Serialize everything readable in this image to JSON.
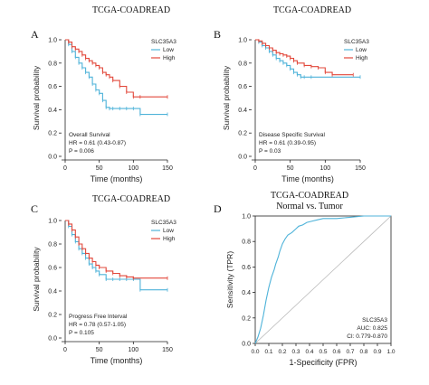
{
  "chart_data": [
    {
      "panel": "A",
      "type": "line",
      "title": "TCGA-COADREAD",
      "xlabel": "Time (months)",
      "ylabel": "Survival probability",
      "xlim": [
        0,
        150
      ],
      "ylim": [
        0,
        1.0
      ],
      "xticks": [
        0,
        50,
        100,
        150
      ],
      "yticks": [
        0,
        0.2,
        0.4,
        0.6,
        0.8,
        1.0
      ],
      "legend_title": "SLC35A3",
      "legend_position": "top-right",
      "annotation": [
        "Overall Survival",
        "HR = 0.61 (0.43-0.87)",
        "P = 0.006"
      ],
      "series": [
        {
          "name": "Low",
          "color": "#4fb3d9",
          "x": [
            0,
            5,
            10,
            15,
            20,
            25,
            30,
            35,
            40,
            45,
            50,
            55,
            60,
            65,
            70,
            80,
            90,
            100,
            110,
            150
          ],
          "y": [
            1.0,
            0.96,
            0.9,
            0.85,
            0.8,
            0.76,
            0.72,
            0.68,
            0.62,
            0.57,
            0.54,
            0.48,
            0.42,
            0.41,
            0.41,
            0.41,
            0.41,
            0.41,
            0.36,
            0.36
          ]
        },
        {
          "name": "High",
          "color": "#e2483b",
          "x": [
            0,
            5,
            10,
            15,
            20,
            25,
            30,
            35,
            40,
            45,
            50,
            55,
            60,
            65,
            70,
            80,
            90,
            100,
            110,
            150
          ],
          "y": [
            1.0,
            0.98,
            0.94,
            0.92,
            0.9,
            0.87,
            0.84,
            0.82,
            0.8,
            0.78,
            0.76,
            0.72,
            0.7,
            0.68,
            0.65,
            0.6,
            0.55,
            0.51,
            0.51,
            0.51
          ]
        }
      ]
    },
    {
      "panel": "B",
      "type": "line",
      "title": "TCGA-COADREAD",
      "xlabel": "Time (months)",
      "ylabel": "Survival probability",
      "xlim": [
        0,
        150
      ],
      "ylim": [
        0,
        1.0
      ],
      "xticks": [
        0,
        50,
        100,
        150
      ],
      "yticks": [
        0,
        0.2,
        0.4,
        0.6,
        0.8,
        1.0
      ],
      "legend_title": "SLC35A3",
      "legend_position": "top-right",
      "annotation": [
        "Disease Specific Survival",
        "HR = 0.61 (0.39-0.95)",
        "P = 0.03"
      ],
      "series": [
        {
          "name": "Low",
          "color": "#4fb3d9",
          "x": [
            0,
            5,
            10,
            15,
            20,
            25,
            30,
            35,
            40,
            45,
            50,
            55,
            60,
            65,
            70,
            80,
            150
          ],
          "y": [
            1.0,
            0.98,
            0.95,
            0.93,
            0.9,
            0.87,
            0.84,
            0.82,
            0.8,
            0.78,
            0.75,
            0.72,
            0.7,
            0.68,
            0.68,
            0.68,
            0.68
          ]
        },
        {
          "name": "High",
          "color": "#e2483b",
          "x": [
            0,
            5,
            10,
            15,
            20,
            25,
            30,
            35,
            40,
            45,
            50,
            55,
            60,
            70,
            80,
            90,
            100,
            110,
            140
          ],
          "y": [
            1.0,
            0.99,
            0.97,
            0.95,
            0.93,
            0.91,
            0.89,
            0.88,
            0.87,
            0.86,
            0.84,
            0.82,
            0.8,
            0.78,
            0.77,
            0.76,
            0.72,
            0.7,
            0.7
          ]
        }
      ]
    },
    {
      "panel": "C",
      "type": "line",
      "title": "TCGA-COADREAD",
      "xlabel": "Time (months)",
      "ylabel": "Survival probability",
      "xlim": [
        0,
        150
      ],
      "ylim": [
        0,
        1.0
      ],
      "xticks": [
        0,
        50,
        100,
        150
      ],
      "yticks": [
        0,
        0.2,
        0.4,
        0.6,
        0.8,
        1.0
      ],
      "legend_title": "SLC35A3",
      "legend_position": "top-right",
      "annotation": [
        "Progress Free Interval",
        "HR = 0.78 (0.57-1.05)",
        "P = 0.105"
      ],
      "series": [
        {
          "name": "Low",
          "color": "#4fb3d9",
          "x": [
            0,
            5,
            10,
            15,
            20,
            25,
            30,
            35,
            40,
            45,
            50,
            60,
            70,
            80,
            90,
            100,
            110,
            150
          ],
          "y": [
            1.0,
            0.95,
            0.88,
            0.82,
            0.76,
            0.72,
            0.68,
            0.63,
            0.6,
            0.57,
            0.54,
            0.5,
            0.5,
            0.5,
            0.5,
            0.5,
            0.41,
            0.41
          ]
        },
        {
          "name": "High",
          "color": "#e2483b",
          "x": [
            0,
            5,
            10,
            15,
            20,
            25,
            30,
            35,
            40,
            45,
            50,
            60,
            70,
            80,
            90,
            100,
            150
          ],
          "y": [
            1.0,
            0.97,
            0.92,
            0.86,
            0.8,
            0.76,
            0.72,
            0.68,
            0.65,
            0.62,
            0.6,
            0.57,
            0.55,
            0.53,
            0.52,
            0.51,
            0.51
          ]
        }
      ]
    },
    {
      "panel": "D",
      "type": "line",
      "title": "TCGA-COADREAD",
      "subtitle": "Normal vs. Tumor",
      "xlabel": "1-Specificity (FPR)",
      "ylabel": "Sensitivity (TPR)",
      "xlim": [
        0,
        1.0
      ],
      "ylim": [
        0,
        1.0
      ],
      "xticks": [
        0.0,
        0.1,
        0.2,
        0.3,
        0.4,
        0.5,
        0.6,
        0.7,
        0.8,
        0.9,
        1.0
      ],
      "yticks": [
        0.0,
        0.2,
        0.4,
        0.6,
        0.8,
        1.0
      ],
      "annotation": [
        "SLC35A3",
        "AUC: 0.825",
        "CI: 0.779-0.870"
      ],
      "diagonal_color": "#b8b8b8",
      "series": [
        {
          "name": "ROC",
          "color": "#4fb3d9",
          "x": [
            0,
            0.02,
            0.04,
            0.06,
            0.08,
            0.1,
            0.12,
            0.14,
            0.15,
            0.17,
            0.18,
            0.2,
            0.22,
            0.24,
            0.27,
            0.3,
            0.32,
            0.35,
            0.38,
            0.42,
            0.46,
            0.5,
            0.6,
            0.7,
            0.8,
            1.0
          ],
          "y": [
            0,
            0.05,
            0.12,
            0.22,
            0.34,
            0.44,
            0.52,
            0.58,
            0.62,
            0.68,
            0.72,
            0.78,
            0.82,
            0.85,
            0.87,
            0.9,
            0.92,
            0.93,
            0.95,
            0.96,
            0.97,
            0.98,
            0.98,
            0.99,
            1.0,
            1.0
          ]
        }
      ]
    }
  ]
}
